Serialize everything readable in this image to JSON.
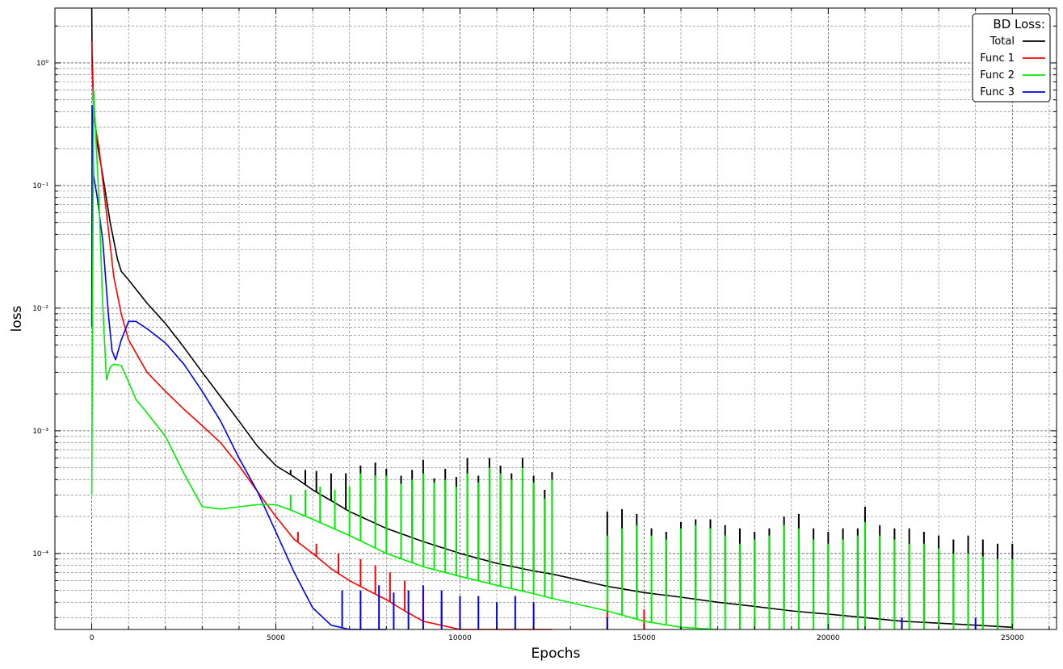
{
  "chart_data": {
    "type": "line",
    "xlabel": "Epochs",
    "ylabel": "loss",
    "xscale": "linear",
    "yscale": "log",
    "xlim": [
      -1000,
      26200
    ],
    "ylim": [
      2.4e-05,
      2.8
    ],
    "grid": "major and minor, dashed",
    "xticks": [
      {
        "value": 0,
        "label": "0"
      },
      {
        "value": 5000,
        "label": "5000"
      },
      {
        "value": 10000,
        "label": "10000"
      },
      {
        "value": 15000,
        "label": "15000"
      },
      {
        "value": 20000,
        "label": "20000"
      },
      {
        "value": 25000,
        "label": "25000"
      }
    ],
    "yticks": [
      {
        "value": 1,
        "label": "10⁰"
      },
      {
        "value": 0.1,
        "label": "10⁻¹"
      },
      {
        "value": 0.01,
        "label": "10⁻²"
      },
      {
        "value": 0.001,
        "label": "10⁻³"
      },
      {
        "value": 0.0001,
        "label": "10⁻⁴"
      }
    ],
    "legend": {
      "title": "BD Loss:",
      "placement": "top-right",
      "entries": [
        "Total",
        "Func 1",
        "Func 2",
        "Func 3"
      ]
    },
    "series": [
      {
        "name": "Total",
        "color": "#000000",
        "x": [
          0,
          10,
          50,
          150,
          300,
          500,
          700,
          800,
          1000,
          1500,
          2000,
          2500,
          3000,
          3500,
          4000,
          4500,
          5000,
          5500,
          6000,
          7000,
          8000,
          9000,
          10000,
          11000,
          12000,
          12500,
          14000,
          15000,
          16000,
          17000,
          18000,
          19000,
          20000,
          21000,
          22000,
          23000,
          24000,
          25000
        ],
        "y": [
          2.8,
          1.2,
          0.4,
          0.22,
          0.12,
          0.05,
          0.025,
          0.02,
          0.017,
          0.011,
          0.0075,
          0.0048,
          0.003,
          0.0019,
          0.0012,
          0.00075,
          0.00052,
          0.00042,
          0.00033,
          0.00022,
          0.00016,
          0.000125,
          0.0001,
          8.3e-05,
          7.2e-05,
          6.8e-05,
          5.4e-05,
          4.8e-05,
          4.4e-05,
          4e-05,
          3.7e-05,
          3.4e-05,
          3.2e-05,
          3e-05,
          2.8e-05,
          2.7e-05,
          2.6e-05,
          2.5e-05
        ],
        "spikes": [
          {
            "x": 5400,
            "y": 0.00048
          },
          {
            "x": 5800,
            "y": 0.00048
          },
          {
            "x": 6100,
            "y": 0.00047
          },
          {
            "x": 6500,
            "y": 0.00045
          },
          {
            "x": 6900,
            "y": 0.00045
          },
          {
            "x": 7300,
            "y": 0.00052
          },
          {
            "x": 7700,
            "y": 0.00055
          },
          {
            "x": 8000,
            "y": 0.00049
          },
          {
            "x": 8400,
            "y": 0.00043
          },
          {
            "x": 8700,
            "y": 0.00048
          },
          {
            "x": 9000,
            "y": 0.00058
          },
          {
            "x": 9300,
            "y": 0.00041
          },
          {
            "x": 9600,
            "y": 0.00049
          },
          {
            "x": 9900,
            "y": 0.00042
          },
          {
            "x": 10200,
            "y": 0.0006
          },
          {
            "x": 10500,
            "y": 0.00043
          },
          {
            "x": 10800,
            "y": 0.0006
          },
          {
            "x": 11100,
            "y": 0.00052
          },
          {
            "x": 11400,
            "y": 0.00045
          },
          {
            "x": 11700,
            "y": 0.0006
          },
          {
            "x": 12000,
            "y": 0.00043
          },
          {
            "x": 12300,
            "y": 0.00033
          },
          {
            "x": 12500,
            "y": 0.00046
          },
          {
            "x": 14000,
            "y": 0.00022
          },
          {
            "x": 14400,
            "y": 0.00023
          },
          {
            "x": 14800,
            "y": 0.00021
          },
          {
            "x": 15200,
            "y": 0.00016
          },
          {
            "x": 15600,
            "y": 0.00015
          },
          {
            "x": 16000,
            "y": 0.00018
          },
          {
            "x": 16400,
            "y": 0.00019
          },
          {
            "x": 16800,
            "y": 0.00019
          },
          {
            "x": 17200,
            "y": 0.00017
          },
          {
            "x": 17600,
            "y": 0.00016
          },
          {
            "x": 18000,
            "y": 0.00015
          },
          {
            "x": 18400,
            "y": 0.00016
          },
          {
            "x": 18800,
            "y": 0.0002
          },
          {
            "x": 19200,
            "y": 0.00021
          },
          {
            "x": 19600,
            "y": 0.00016
          },
          {
            "x": 20000,
            "y": 0.00015
          },
          {
            "x": 20400,
            "y": 0.00016
          },
          {
            "x": 20800,
            "y": 0.00016
          },
          {
            "x": 21000,
            "y": 0.00024
          },
          {
            "x": 21400,
            "y": 0.00017
          },
          {
            "x": 21800,
            "y": 0.00016
          },
          {
            "x": 22200,
            "y": 0.00016
          },
          {
            "x": 22600,
            "y": 0.00015
          },
          {
            "x": 23000,
            "y": 0.00014
          },
          {
            "x": 23400,
            "y": 0.00013
          },
          {
            "x": 23800,
            "y": 0.00014
          },
          {
            "x": 24200,
            "y": 0.00013
          },
          {
            "x": 24600,
            "y": 0.00012
          },
          {
            "x": 25000,
            "y": 0.00012
          }
        ]
      },
      {
        "name": "Func 1",
        "color": "#ff0000",
        "x": [
          0,
          10,
          50,
          100,
          200,
          400,
          600,
          800,
          1000,
          1500,
          2000,
          2500,
          3000,
          3500,
          4000,
          4500,
          5000,
          5500,
          6000,
          6500,
          7000,
          7500,
          8000,
          8500,
          9000,
          10000,
          11000,
          12000,
          12500
        ],
        "y": [
          1.5,
          0.9,
          0.5,
          0.3,
          0.2,
          0.06,
          0.018,
          0.009,
          0.0055,
          0.003,
          0.0021,
          0.0015,
          0.0011,
          0.0008,
          0.00052,
          0.00032,
          0.0002,
          0.00013,
          0.0001,
          7.5e-05,
          6e-05,
          5e-05,
          4.2e-05,
          3.4e-05,
          2.8e-05,
          2.4e-05,
          2.4e-05,
          2.4e-05,
          2.4e-05
        ],
        "spikes": [
          {
            "x": 5600,
            "y": 0.00015
          },
          {
            "x": 6100,
            "y": 0.00012
          },
          {
            "x": 6700,
            "y": 0.0001
          },
          {
            "x": 7300,
            "y": 9e-05
          },
          {
            "x": 7700,
            "y": 8e-05
          },
          {
            "x": 8100,
            "y": 7e-05
          },
          {
            "x": 8500,
            "y": 6e-05
          },
          {
            "x": 9000,
            "y": 5e-05
          },
          {
            "x": 9500,
            "y": 4e-05
          },
          {
            "x": 10000,
            "y": 4e-05
          },
          {
            "x": 14000,
            "y": 4e-05
          },
          {
            "x": 15000,
            "y": 3.5e-05
          }
        ]
      },
      {
        "name": "Func 2",
        "color": "#00ee00",
        "x": [
          0,
          20,
          50,
          100,
          200,
          300,
          400,
          500,
          600,
          800,
          1000,
          1200,
          1500,
          2000,
          2500,
          3000,
          3500,
          4000,
          4500,
          5000,
          5500,
          6000,
          7000,
          8000,
          9000,
          10000,
          11000,
          12000,
          12500,
          14000,
          15000,
          16000,
          17000
        ],
        "y": [
          0.0003,
          0.007,
          0.6,
          0.3,
          0.07,
          0.01,
          0.0026,
          0.0033,
          0.0035,
          0.0034,
          0.0025,
          0.0018,
          0.0014,
          0.0009,
          0.00045,
          0.00024,
          0.00023,
          0.00024,
          0.00025,
          0.00025,
          0.00022,
          0.00019,
          0.00014,
          0.0001,
          7.8e-05,
          6.5e-05,
          5.5e-05,
          4.7e-05,
          4.3e-05,
          3.4e-05,
          2.8e-05,
          2.5e-05,
          2.4e-05
        ],
        "spikes": [
          {
            "x": 5400,
            "y": 0.0003
          },
          {
            "x": 5800,
            "y": 0.00033
          },
          {
            "x": 6200,
            "y": 0.00035
          },
          {
            "x": 6600,
            "y": 0.00033
          },
          {
            "x": 7000,
            "y": 0.00035
          },
          {
            "x": 7300,
            "y": 0.00045
          },
          {
            "x": 7700,
            "y": 0.00043
          },
          {
            "x": 8000,
            "y": 0.00043
          },
          {
            "x": 8400,
            "y": 0.00037
          },
          {
            "x": 8700,
            "y": 0.0004
          },
          {
            "x": 9000,
            "y": 0.00045
          },
          {
            "x": 9300,
            "y": 0.00038
          },
          {
            "x": 9600,
            "y": 0.0004
          },
          {
            "x": 9900,
            "y": 0.00035
          },
          {
            "x": 10200,
            "y": 0.00045
          },
          {
            "x": 10500,
            "y": 0.00038
          },
          {
            "x": 10800,
            "y": 0.0005
          },
          {
            "x": 11100,
            "y": 0.00045
          },
          {
            "x": 11400,
            "y": 0.0004
          },
          {
            "x": 11700,
            "y": 0.0005
          },
          {
            "x": 12000,
            "y": 0.00038
          },
          {
            "x": 12300,
            "y": 0.00028
          },
          {
            "x": 12500,
            "y": 0.0004
          },
          {
            "x": 14000,
            "y": 0.00014
          },
          {
            "x": 14400,
            "y": 0.00016
          },
          {
            "x": 14800,
            "y": 0.00017
          },
          {
            "x": 15200,
            "y": 0.00014
          },
          {
            "x": 15600,
            "y": 0.00013
          },
          {
            "x": 16000,
            "y": 0.00016
          },
          {
            "x": 16400,
            "y": 0.00017
          },
          {
            "x": 16800,
            "y": 0.00016
          },
          {
            "x": 17200,
            "y": 0.00014
          },
          {
            "x": 17600,
            "y": 0.00012
          },
          {
            "x": 18000,
            "y": 0.00013
          },
          {
            "x": 18400,
            "y": 0.00014
          },
          {
            "x": 18800,
            "y": 0.00017
          },
          {
            "x": 19200,
            "y": 0.00016
          },
          {
            "x": 19600,
            "y": 0.00013
          },
          {
            "x": 20000,
            "y": 0.00012
          },
          {
            "x": 20400,
            "y": 0.00013
          },
          {
            "x": 20800,
            "y": 0.00014
          },
          {
            "x": 21000,
            "y": 0.00018
          },
          {
            "x": 21400,
            "y": 0.00014
          },
          {
            "x": 21800,
            "y": 0.00013
          },
          {
            "x": 22200,
            "y": 0.00012
          },
          {
            "x": 22600,
            "y": 0.00012
          },
          {
            "x": 23000,
            "y": 0.00011
          },
          {
            "x": 23400,
            "y": 0.0001
          },
          {
            "x": 23800,
            "y": 0.0001
          },
          {
            "x": 24200,
            "y": 9.5e-05
          },
          {
            "x": 24600,
            "y": 9e-05
          },
          {
            "x": 25000,
            "y": 9e-05
          }
        ]
      },
      {
        "name": "Func 3",
        "color": "#0000ee",
        "x": [
          0,
          10,
          50,
          150,
          300,
          450,
          550,
          650,
          800,
          1000,
          1200,
          1500,
          2000,
          2500,
          3000,
          3500,
          4000,
          4500,
          5000,
          5500,
          6000,
          6500,
          7000,
          7500,
          8000
        ],
        "y": [
          0.007,
          0.45,
          0.12,
          0.08,
          0.035,
          0.009,
          0.0045,
          0.0038,
          0.0055,
          0.0078,
          0.0078,
          0.0068,
          0.0052,
          0.0035,
          0.0021,
          0.0012,
          0.0006,
          0.00032,
          0.00015,
          7e-05,
          3.6e-05,
          2.6e-05,
          2.4e-05,
          2.4e-05,
          2.4e-05
        ],
        "spikes": [
          {
            "x": 6800,
            "y": 5e-05
          },
          {
            "x": 7300,
            "y": 5e-05
          },
          {
            "x": 7800,
            "y": 5.5e-05
          },
          {
            "x": 8200,
            "y": 4.8e-05
          },
          {
            "x": 8600,
            "y": 5e-05
          },
          {
            "x": 9000,
            "y": 5.5e-05
          },
          {
            "x": 9500,
            "y": 5e-05
          },
          {
            "x": 10000,
            "y": 4.5e-05
          },
          {
            "x": 10500,
            "y": 4.5e-05
          },
          {
            "x": 11000,
            "y": 4e-05
          },
          {
            "x": 11500,
            "y": 4.5e-05
          },
          {
            "x": 12000,
            "y": 4e-05
          },
          {
            "x": 14000,
            "y": 3e-05
          },
          {
            "x": 16000,
            "y": 3e-05
          },
          {
            "x": 18000,
            "y": 3e-05
          },
          {
            "x": 20000,
            "y": 3e-05
          },
          {
            "x": 22000,
            "y": 3e-05
          },
          {
            "x": 24000,
            "y": 3e-05
          }
        ]
      }
    ]
  }
}
